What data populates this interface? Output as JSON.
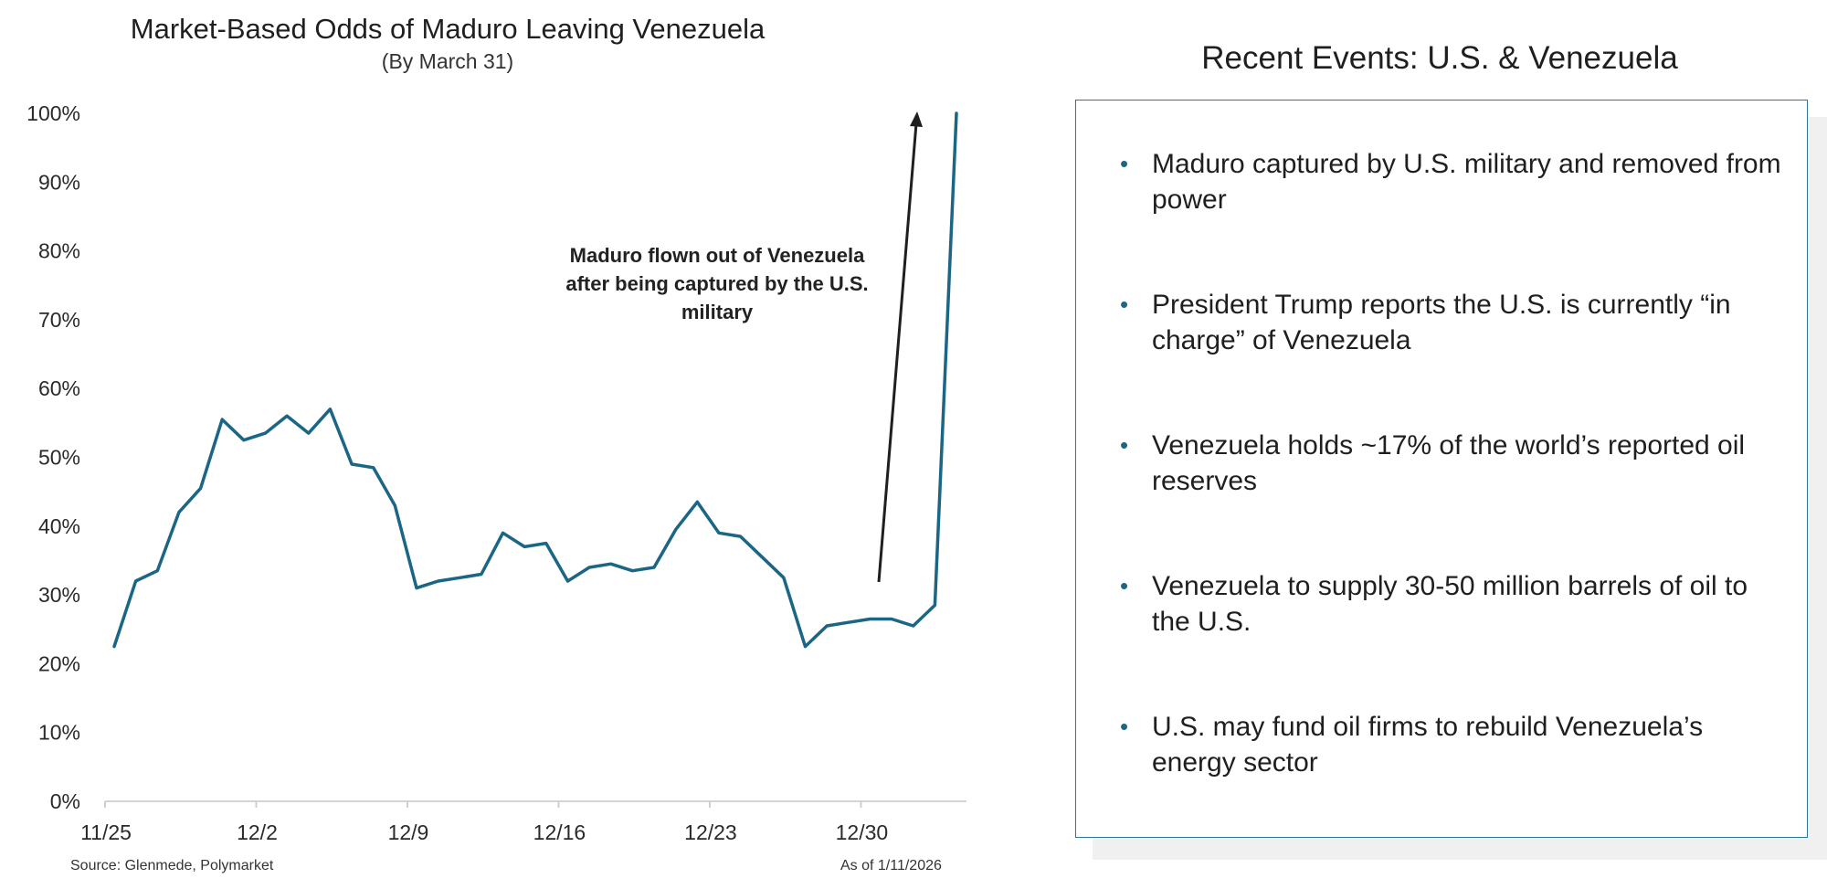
{
  "chart_data": {
    "type": "line",
    "title": "Market-Based Odds of Maduro Leaving Venezuela",
    "subtitle": "(By March 31)",
    "x_tick_labels": [
      "11/25",
      "12/2",
      "12/9",
      "12/16",
      "12/23",
      "12/30"
    ],
    "y_tick_labels": [
      "0%",
      "10%",
      "20%",
      "30%",
      "40%",
      "50%",
      "60%",
      "70%",
      "80%",
      "90%",
      "100%"
    ],
    "ylim": [
      0,
      100
    ],
    "grid": false,
    "series": [
      {
        "color": "#1b6585",
        "values": [
          22.5,
          32,
          33.5,
          42,
          45.5,
          55.5,
          52.5,
          53.5,
          56,
          53.5,
          57,
          49,
          48.5,
          43,
          31,
          32,
          32.5,
          33,
          39,
          37,
          37.5,
          32,
          34,
          34.5,
          33.5,
          34,
          39.5,
          43.5,
          39,
          38.5,
          35.5,
          32.5,
          22.5,
          25.5,
          26,
          26.5,
          26.5,
          25.5,
          28.5,
          100
        ]
      }
    ],
    "annotation": "Maduro flown out of Venezuela after being captured by the U.S. military"
  },
  "footer": {
    "source": "Source: Glenmede, Polymarket",
    "as_of": "As of 1/11/2026"
  },
  "panel": {
    "title": "Recent Events: U.S. & Venezuela",
    "events": [
      "Maduro captured by U.S. military and removed from power",
      "President Trump reports the U.S. is currently “in charge” of Venezuela",
      "Venezuela holds ~17% of the world’s reported oil reserves",
      "Venezuela to supply 30-50 million barrels of oil to the U.S.",
      "U.S. may fund oil firms to rebuild Venezuela’s energy sector"
    ]
  }
}
